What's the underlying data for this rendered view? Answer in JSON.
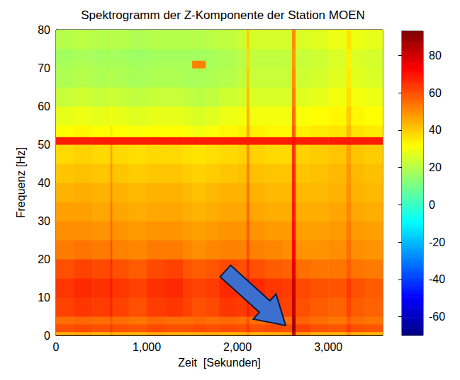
{
  "chart_data": {
    "type": "heatmap",
    "title": "Spektrogramm der Z-Komponente der Station MOEN",
    "x_label": "Zeit  [Sekunden]",
    "y_label": "Frequenz [Hz]",
    "xlim": [
      0,
      3600
    ],
    "xticks": [
      0,
      1000,
      2000,
      3000
    ],
    "ylim": [
      0,
      80
    ],
    "yticks": [
      0,
      10,
      20,
      30,
      40,
      50,
      60,
      70,
      80
    ],
    "time_edges": [
      0,
      200,
      400,
      600,
      620,
      800,
      1000,
      1200,
      1400,
      1500,
      1650,
      1800,
      2000,
      2100,
      2130,
      2300,
      2500,
      2600,
      2640,
      2800,
      3000,
      3200,
      3250,
      3400,
      3600
    ],
    "freq_edges": [
      0,
      1,
      3,
      5,
      10,
      15,
      20,
      25,
      30,
      35,
      40,
      45,
      50,
      52,
      55,
      60,
      65,
      70,
      72,
      75,
      80
    ],
    "cells": [
      [
        45,
        46,
        44,
        50,
        45,
        44,
        46,
        45,
        44,
        45,
        46,
        44,
        45,
        50,
        44,
        45,
        46,
        80,
        48,
        45,
        44,
        50,
        45,
        44
      ],
      [
        60,
        61,
        60,
        64,
        60,
        59,
        61,
        60,
        60,
        61,
        60,
        61,
        60,
        64,
        60,
        61,
        60,
        88,
        62,
        60,
        59,
        63,
        60,
        59
      ],
      [
        55,
        56,
        55,
        60,
        55,
        54,
        56,
        55,
        55,
        56,
        55,
        56,
        55,
        60,
        55,
        56,
        55,
        85,
        57,
        55,
        54,
        58,
        55,
        54
      ],
      [
        62,
        64,
        63,
        68,
        62,
        60,
        63,
        64,
        62,
        60,
        61,
        64,
        63,
        68,
        64,
        63,
        62,
        82,
        60,
        58,
        57,
        62,
        58,
        57
      ],
      [
        64,
        66,
        65,
        70,
        64,
        62,
        65,
        66,
        63,
        62,
        63,
        66,
        65,
        70,
        66,
        64,
        63,
        80,
        61,
        60,
        59,
        64,
        60,
        58
      ],
      [
        60,
        62,
        61,
        66,
        60,
        58,
        61,
        62,
        59,
        58,
        59,
        61,
        60,
        66,
        60,
        58,
        57,
        76,
        55,
        54,
        54,
        58,
        54,
        53
      ],
      [
        53,
        54,
        53,
        60,
        52,
        51,
        53,
        53,
        51,
        50,
        51,
        52,
        52,
        60,
        52,
        51,
        50,
        72,
        49,
        49,
        50,
        55,
        50,
        49
      ],
      [
        50,
        50,
        49,
        57,
        49,
        48,
        49,
        49,
        48,
        47,
        48,
        49,
        49,
        58,
        49,
        48,
        48,
        70,
        47,
        47,
        48,
        53,
        48,
        47
      ],
      [
        47,
        47,
        46,
        55,
        46,
        45,
        46,
        46,
        45,
        44,
        45,
        46,
        46,
        56,
        46,
        45,
        45,
        68,
        45,
        45,
        46,
        51,
        46,
        45
      ],
      [
        44,
        45,
        44,
        52,
        44,
        43,
        44,
        44,
        43,
        42,
        43,
        44,
        44,
        54,
        44,
        43,
        43,
        67,
        43,
        43,
        44,
        50,
        44,
        43
      ],
      [
        41,
        42,
        41,
        50,
        41,
        40,
        41,
        41,
        40,
        39,
        40,
        41,
        42,
        52,
        42,
        41,
        41,
        66,
        41,
        42,
        43,
        49,
        43,
        42
      ],
      [
        38,
        39,
        38,
        47,
        38,
        37,
        38,
        38,
        37,
        36,
        37,
        38,
        39,
        50,
        39,
        38,
        38,
        64,
        39,
        40,
        41,
        47,
        41,
        40
      ],
      [
        68,
        68,
        68,
        68,
        68,
        68,
        68,
        68,
        68,
        68,
        68,
        68,
        68,
        68,
        68,
        68,
        68,
        70,
        68,
        68,
        68,
        68,
        68,
        68
      ],
      [
        32,
        33,
        32,
        36,
        32,
        31,
        32,
        32,
        31,
        30,
        31,
        33,
        34,
        46,
        34,
        33,
        33,
        58,
        34,
        35,
        36,
        43,
        36,
        35
      ],
      [
        28,
        29,
        28,
        32,
        28,
        27,
        28,
        28,
        27,
        26,
        27,
        29,
        30,
        44,
        30,
        30,
        30,
        55,
        31,
        32,
        33,
        40,
        33,
        32
      ],
      [
        23,
        24,
        23,
        27,
        23,
        22,
        23,
        23,
        22,
        21,
        22,
        24,
        25,
        42,
        26,
        26,
        26,
        52,
        27,
        28,
        30,
        37,
        30,
        29
      ],
      [
        19,
        20,
        19,
        22,
        19,
        18,
        19,
        19,
        18,
        18,
        19,
        20,
        22,
        40,
        23,
        23,
        23,
        50,
        24,
        25,
        27,
        35,
        27,
        26
      ],
      [
        18,
        19,
        18,
        20,
        18,
        17,
        18,
        18,
        18,
        52,
        18,
        19,
        21,
        38,
        22,
        22,
        22,
        48,
        23,
        24,
        26,
        34,
        26,
        25
      ],
      [
        17,
        18,
        17,
        20,
        17,
        16,
        17,
        17,
        17,
        17,
        18,
        19,
        21,
        38,
        22,
        22,
        22,
        48,
        23,
        24,
        26,
        34,
        26,
        25
      ],
      [
        20,
        21,
        20,
        22,
        20,
        19,
        20,
        20,
        20,
        20,
        21,
        22,
        24,
        40,
        25,
        25,
        25,
        50,
        26,
        27,
        29,
        36,
        29,
        28
      ]
    ],
    "colorbar_range": [
      -70,
      93
    ],
    "colorbar_ticks": [
      -60,
      -40,
      -20,
      0,
      20,
      40,
      60,
      80
    ]
  }
}
